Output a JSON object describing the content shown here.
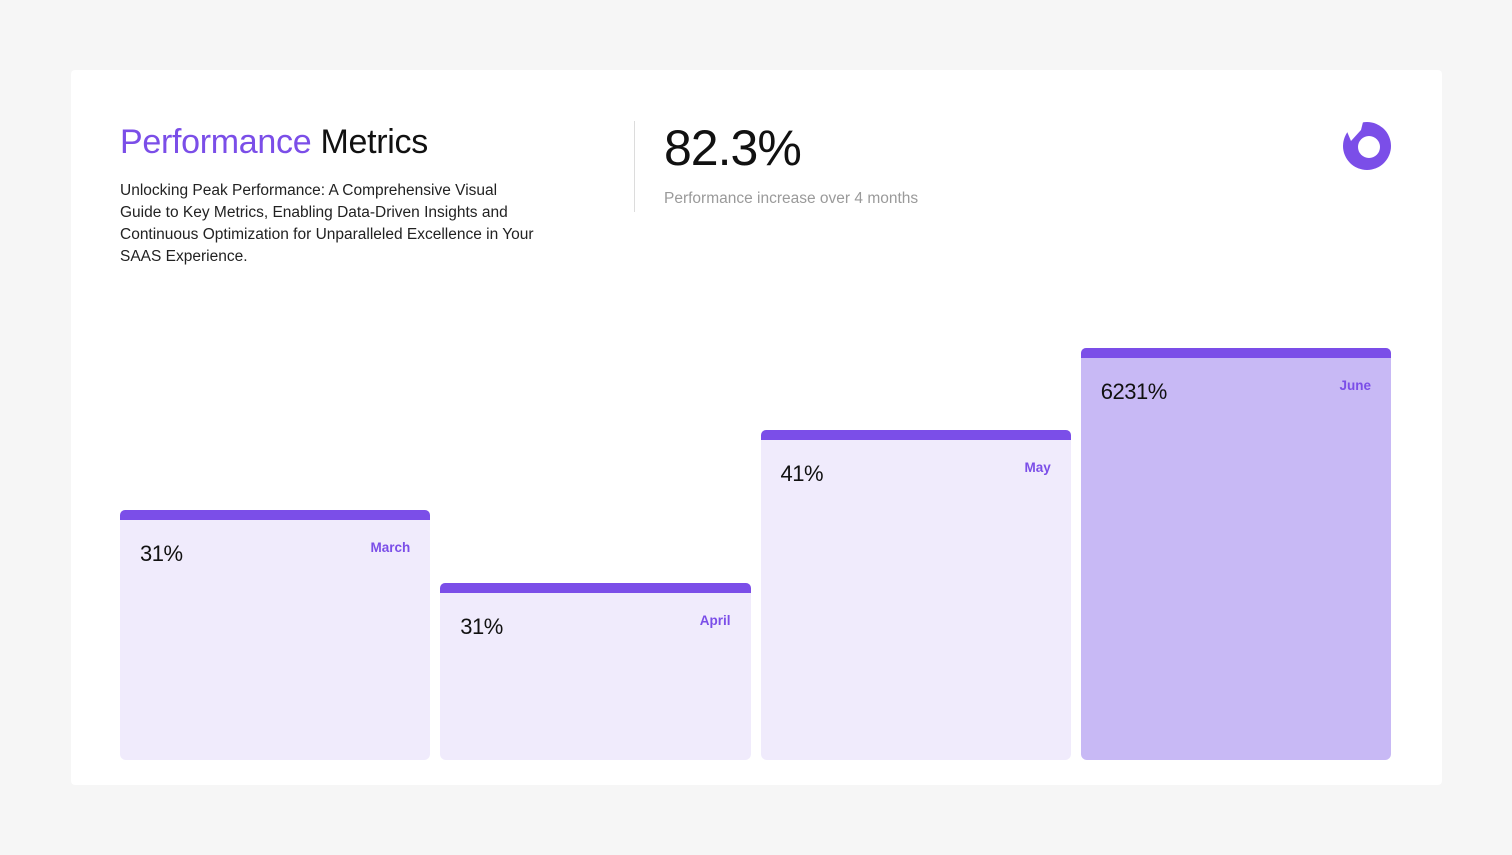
{
  "header": {
    "title_accent": "Performance",
    "title_rest": "Metrics",
    "description": "Unlocking Peak Performance: A Comprehensive Visual Guide to Key Metrics, Enabling Data-Driven Insights and Continuous Optimization for Unparalleled Excellence in Your SAAS Experience."
  },
  "kpi": {
    "value": "82.3%",
    "caption": "Performance increase over 4 months"
  },
  "logo": {
    "icon": "brand-logo-icon",
    "color": "#7b4ee8"
  },
  "colors": {
    "accent": "#7b4ee8",
    "bar_light": "#f0ebfc",
    "bar_highlight": "#c8b9f5"
  },
  "chart_data": {
    "type": "bar",
    "categories": [
      "March",
      "April",
      "May",
      "June"
    ],
    "value_labels": [
      "31%",
      "31%",
      "41%",
      "6231%"
    ],
    "relative_heights": [
      0.0,
      -0.29,
      0.32,
      0.65
    ],
    "highlighted": "June",
    "grid": false,
    "legend": "none"
  }
}
